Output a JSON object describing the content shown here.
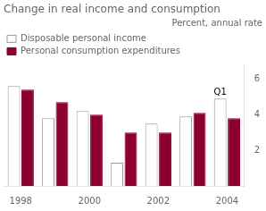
{
  "chart_data": {
    "type": "bar",
    "title": "Change in real income and consumption",
    "subtitle": "Percent, annual rate",
    "categories": [
      "1998",
      null,
      "2000",
      null,
      "2002",
      null,
      "2004"
    ],
    "series": [
      {
        "name": "Disposable personal income",
        "color": "#ffffff",
        "values": [
          5.6,
          3.8,
          4.2,
          1.3,
          3.5,
          3.9,
          4.9
        ]
      },
      {
        "name": "Personal consumption expenditures",
        "color": "#8b0030",
        "values": [
          5.4,
          4.7,
          4.0,
          3.0,
          3.0,
          4.1,
          3.8
        ]
      }
    ],
    "annotations": [
      {
        "text": "Q1",
        "series": "Disposable personal income",
        "index": 6
      }
    ],
    "ylim": [
      0,
      6.8
    ],
    "yticks": [
      2,
      4,
      6
    ],
    "grid": false,
    "legend": "upper left"
  }
}
